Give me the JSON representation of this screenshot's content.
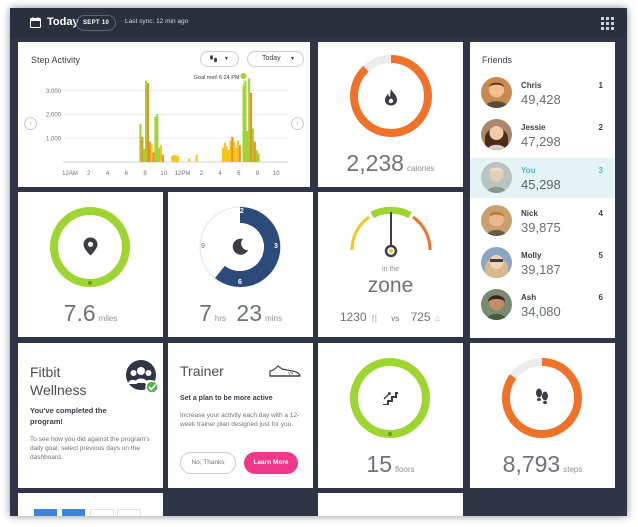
{
  "topbar": {
    "title": "Today",
    "date": "SEPT 10",
    "sync": "Last sync: 12 min ago"
  },
  "step_activity": {
    "title": "Step Activity",
    "view_selector": "Today",
    "goal_label": "Goal met! 6:24 PM",
    "y_ticks": [
      "3,000",
      "2,000",
      "1,000"
    ],
    "x_ticks": [
      "12AM",
      "2",
      "4",
      "6",
      "8",
      "10",
      "12PM",
      "2",
      "4",
      "6",
      "8",
      "10"
    ]
  },
  "chart_data": {
    "type": "bar",
    "title": "Step Activity",
    "x_axis_labels": [
      "12AM",
      "2",
      "4",
      "6",
      "8",
      "10",
      "12PM",
      "2",
      "4",
      "6",
      "8",
      "10"
    ],
    "y_axis_labels": [
      "1,000",
      "2,000",
      "3,000"
    ],
    "ylim": [
      0,
      3600
    ],
    "annotation": "Goal met! 6:24 PM",
    "colors": {
      "before_goal": "#f6c61c",
      "after_goal": "#9fd531",
      "other": "#f28b28"
    },
    "series": [
      {
        "values": [
          [
            7.4,
            1600,
            "#9fd531"
          ],
          [
            7.6,
            1050,
            "#f28b28"
          ],
          [
            7.8,
            550,
            "#9fd531"
          ],
          [
            8.0,
            3400,
            "#9fd531"
          ],
          [
            8.2,
            3300,
            "#f28b28"
          ],
          [
            8.4,
            850,
            "#f28b28"
          ],
          [
            8.6,
            750,
            "#f6c61c"
          ],
          [
            8.8,
            400,
            "#f28b28"
          ],
          [
            9.0,
            1900,
            "#9fd531"
          ],
          [
            9.2,
            2000,
            "#9fd531"
          ],
          [
            9.4,
            600,
            "#9fd531"
          ],
          [
            9.6,
            700,
            "#f6c61c"
          ],
          [
            9.8,
            300,
            "#f28b28"
          ],
          [
            10.8,
            250,
            "#f6c61c"
          ],
          [
            11.0,
            300,
            "#f6c61c"
          ],
          [
            11.2,
            280,
            "#f6c61c"
          ],
          [
            11.4,
            250,
            "#f6c61c"
          ],
          [
            12.6,
            150,
            "#f6c61c"
          ],
          [
            13.4,
            300,
            "#f6c61c"
          ],
          [
            16.2,
            600,
            "#f6c61c"
          ],
          [
            16.4,
            800,
            "#f6c61c"
          ],
          [
            16.6,
            650,
            "#f6c61c"
          ],
          [
            16.8,
            500,
            "#f6c61c"
          ],
          [
            17.0,
            900,
            "#f6c61c"
          ],
          [
            17.2,
            1050,
            "#f28b28"
          ],
          [
            17.4,
            850,
            "#f6c61c"
          ],
          [
            17.6,
            600,
            "#f6c61c"
          ],
          [
            17.8,
            900,
            "#f6c61c"
          ],
          [
            18.0,
            700,
            "#f28b28"
          ],
          [
            18.4,
            3200,
            "#9fd531"
          ],
          [
            18.6,
            3400,
            "#9fd531"
          ],
          [
            18.8,
            1300,
            "#9fd531"
          ],
          [
            19.0,
            3500,
            "#9fd531"
          ],
          [
            19.2,
            2900,
            "#f28b28"
          ],
          [
            19.4,
            1400,
            "#9fd531"
          ],
          [
            19.6,
            850,
            "#f28b28"
          ],
          [
            19.8,
            500,
            "#9fd531"
          ],
          [
            20.0,
            350,
            "#9fd531"
          ]
        ]
      }
    ]
  },
  "calories": {
    "value": "2,238",
    "unit": "calories",
    "progress": 0.88,
    "icon": "flame-icon",
    "color": "#f07128"
  },
  "distance": {
    "value": "7.6",
    "unit": "miles",
    "progress": 1.0,
    "icon": "map-pin-icon",
    "color": "#9fd531"
  },
  "sleep": {
    "hours": "7",
    "hrs_unit": "hrs",
    "minutes": "23",
    "mins_unit": "mins",
    "clock_labels": [
      "12",
      "3",
      "6",
      "9"
    ],
    "icon": "moon-icon",
    "color": "#2c4a7a"
  },
  "zone": {
    "in_the": "in the",
    "word": "zone",
    "left_value": "1230",
    "vs": "vs",
    "right_value": "725"
  },
  "friends": {
    "title": "Friends",
    "list": [
      {
        "name": "Chris",
        "steps": "49,428",
        "rank": "1"
      },
      {
        "name": "Jessie",
        "steps": "47,298",
        "rank": "2"
      },
      {
        "name": "You",
        "steps": "45,298",
        "rank": "3"
      },
      {
        "name": "Nick",
        "steps": "39,875",
        "rank": "4"
      },
      {
        "name": "Molly",
        "steps": "39,187",
        "rank": "5"
      },
      {
        "name": "Ash",
        "steps": "34,080",
        "rank": "6"
      }
    ]
  },
  "wellness": {
    "title": "Fitbit Wellness",
    "completed": "You've completed the program!",
    "description": "To see how you did against the program's daily goal, select previous days on the dashboard."
  },
  "trainer": {
    "title": "Trainer",
    "badge": "Vs",
    "subtitle": "Set a plan to be more active",
    "description": "Increase your activity each day with a 12-week trainer plan designed just for you.",
    "no_button": "No, Thanks",
    "learn_button": "Learn More"
  },
  "floors": {
    "value": "15",
    "unit": "floors",
    "progress": 1.0,
    "icon": "stairs-icon",
    "color": "#9fd531"
  },
  "steps": {
    "value": "8,793",
    "unit": "steps",
    "progress": 0.85,
    "icon": "footprints-icon",
    "color": "#f07128"
  }
}
